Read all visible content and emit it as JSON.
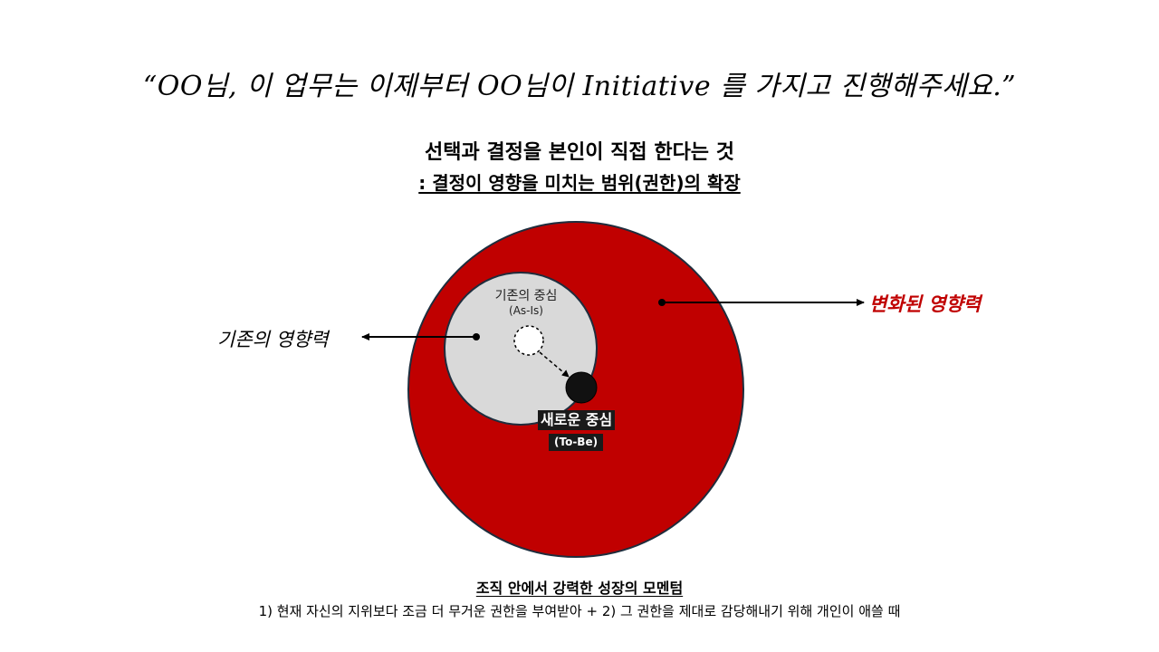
{
  "quote": "“OO님, 이 업무는 이제부터 OO님이 Initiative 를 가지고 진행해주세요.”",
  "title": "선택과 결정을 본인이 직접 한다는 것",
  "subtitle": ": 결정이 영향을 미치는 범위(권한)의 확장",
  "diagram": {
    "old_influence_label": "기존의 영향력",
    "new_influence_label": "변화된 영향력",
    "as_is_label": "기존의 중심",
    "as_is_sub": "(As-Is)",
    "to_be_label": "새로운 중심",
    "to_be_sub": "(To-Be)",
    "colors": {
      "outer_circle": "#c00000",
      "inner_circle": "#d9d9d9",
      "new_influence_text": "#c00000"
    }
  },
  "bottom": {
    "title": "조직 안에서 강력한 성장의 모멘텀",
    "description": "1) 현재 자신의 지위보다 조금 더 무거운 권한을 부여받아 + 2) 그 권한을 제대로 감당해내기 위해 개인이 애쓸 때"
  }
}
